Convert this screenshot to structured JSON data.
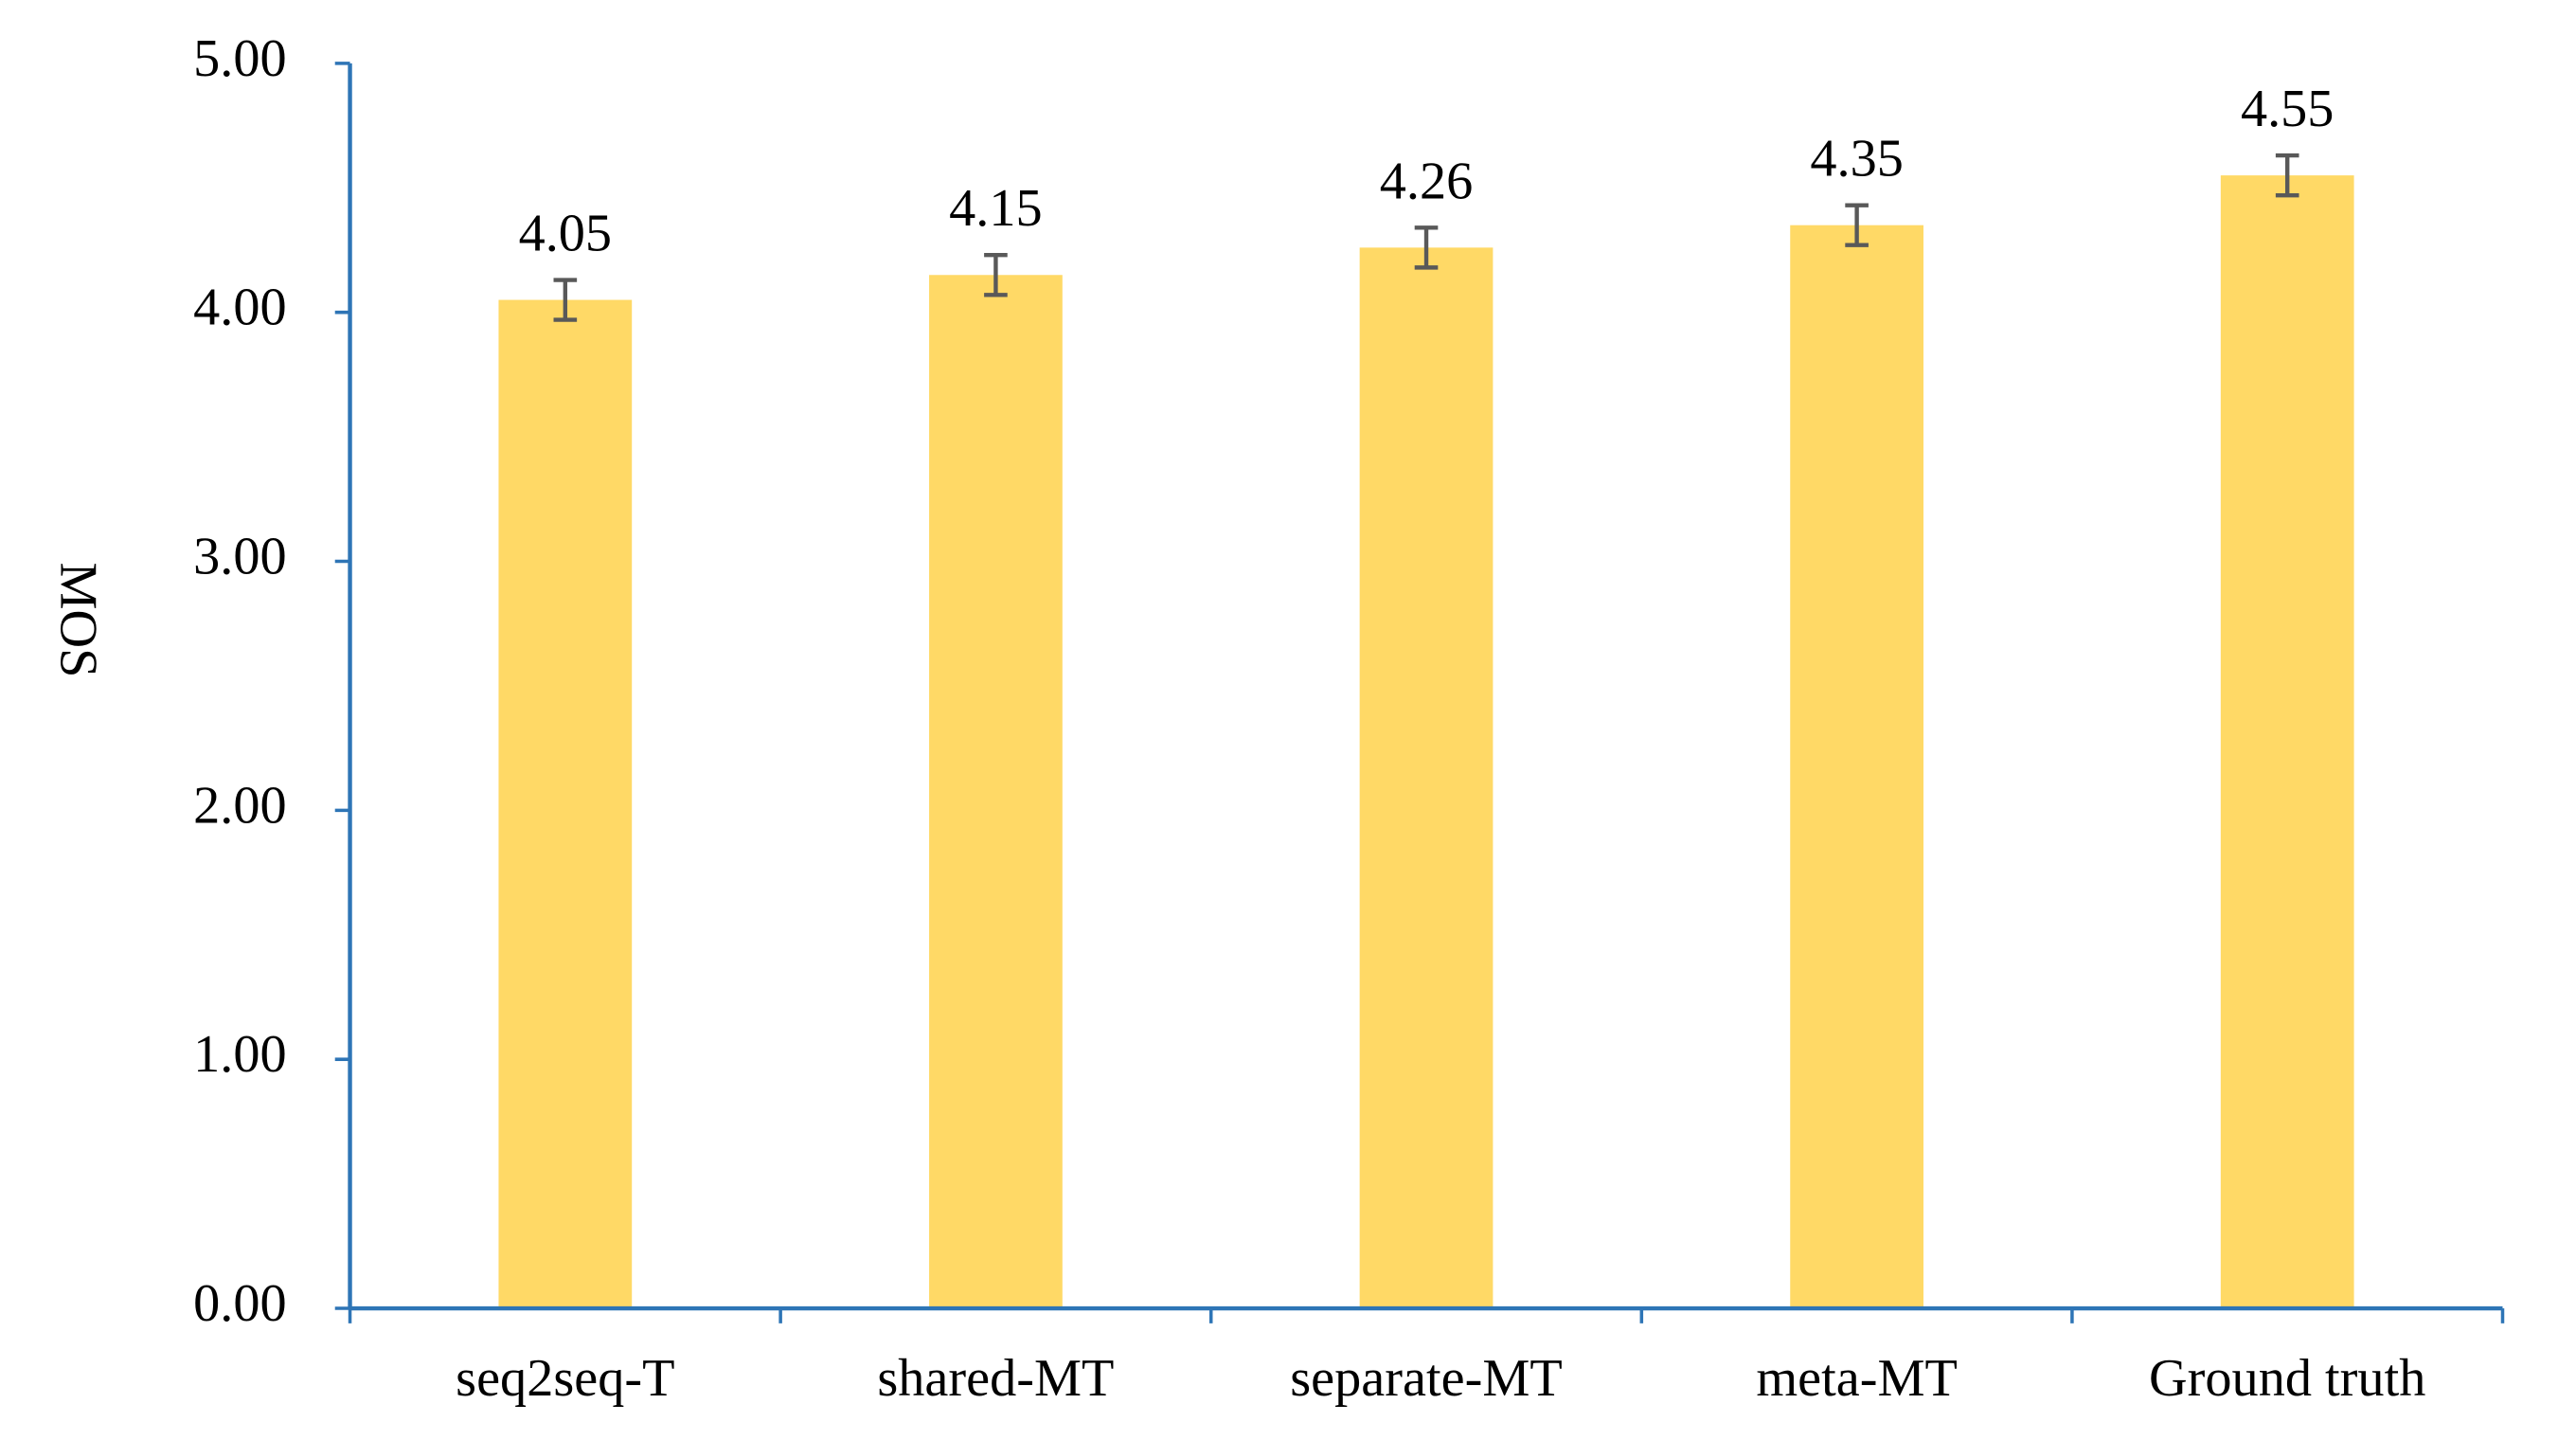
{
  "chart_data": {
    "type": "bar",
    "y_label": "MOS",
    "categories": [
      "seq2seq-T",
      "shared-MT",
      "separate-MT",
      "meta-MT",
      "Ground truth"
    ],
    "values": [
      4.05,
      4.15,
      4.26,
      4.35,
      4.55
    ],
    "errors": [
      0.08,
      0.08,
      0.08,
      0.08,
      0.08
    ],
    "color": "#FFD966",
    "error_color": "#595959",
    "axis_color": "#2E75B6",
    "ylim": [
      0,
      5
    ],
    "yticks": [
      {
        "value": 0,
        "label": "0.00"
      },
      {
        "value": 1,
        "label": "1.00"
      },
      {
        "value": 2,
        "label": "2.00"
      },
      {
        "value": 3,
        "label": "3.00"
      },
      {
        "value": 4,
        "label": "4.00"
      },
      {
        "value": 5,
        "label": "5.00"
      }
    ],
    "grid": false
  }
}
